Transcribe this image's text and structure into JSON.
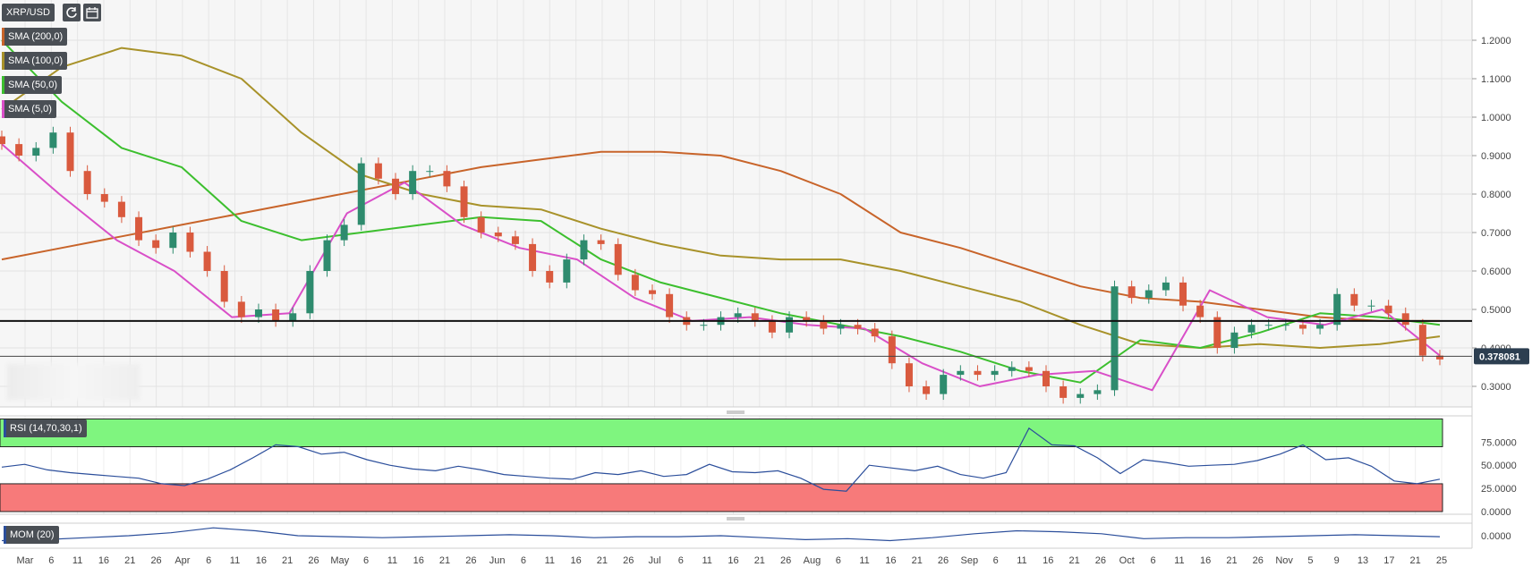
{
  "symbol": "XRP/USD",
  "toolbar": {
    "refresh_icon": "refresh-icon",
    "calendar_icon": "calendar-icon"
  },
  "legend": {
    "sma200": {
      "label": "SMA (200,0)",
      "color": "#c8642a"
    },
    "sma100": {
      "label": "SMA (100,0)",
      "color": "#a8922a"
    },
    "sma50": {
      "label": "SMA (50,0)",
      "color": "#3cbf2e"
    },
    "sma5": {
      "label": "SMA (5,0)",
      "color": "#d94fc8"
    },
    "rsi": {
      "label": "RSI (14,70,30,1)"
    },
    "mom": {
      "label": "MOM (20)"
    }
  },
  "price_badge": "0.378081",
  "colors": {
    "up": "#2e8b6e",
    "down": "#d95a3e",
    "rsi_line": "#2b4e9b",
    "rsi_high": "#7ff57f",
    "rsi_low": "#f77a7a"
  },
  "chart_data": [
    {
      "type": "candlestick",
      "title": "XRP/USD",
      "y_ticks": [
        "1.2000",
        "1.1000",
        "1.0000",
        "0.9000",
        "0.8000",
        "0.7000",
        "0.6000",
        "0.5000",
        "0.4000",
        "0.3000"
      ],
      "ylim": [
        0.25,
        1.3
      ],
      "x_ticks": [
        "Mar",
        "6",
        "11",
        "16",
        "21",
        "26",
        "Apr",
        "6",
        "11",
        "16",
        "21",
        "26",
        "May",
        "6",
        "11",
        "16",
        "21",
        "26",
        "Jun",
        "6",
        "11",
        "16",
        "21",
        "26",
        "Jul",
        "6",
        "11",
        "16",
        "21",
        "26",
        "Aug",
        "6",
        "11",
        "16",
        "21",
        "26",
        "Sep",
        "6",
        "11",
        "16",
        "21",
        "26",
        "Oct",
        "6",
        "11",
        "16",
        "21",
        "26",
        "Nov",
        "5",
        "9",
        "13",
        "17",
        "21",
        "25"
      ],
      "horizontal_line": 0.47,
      "last_price": 0.378081,
      "close_series": [
        0.93,
        0.9,
        0.92,
        0.96,
        0.86,
        0.8,
        0.78,
        0.74,
        0.68,
        0.66,
        0.7,
        0.65,
        0.6,
        0.52,
        0.48,
        0.5,
        0.47,
        0.49,
        0.6,
        0.68,
        0.72,
        0.88,
        0.84,
        0.8,
        0.86,
        0.86,
        0.82,
        0.74,
        0.7,
        0.69,
        0.67,
        0.6,
        0.57,
        0.63,
        0.68,
        0.67,
        0.59,
        0.55,
        0.54,
        0.48,
        0.46,
        0.46,
        0.48,
        0.49,
        0.47,
        0.44,
        0.48,
        0.47,
        0.45,
        0.46,
        0.45,
        0.43,
        0.36,
        0.3,
        0.28,
        0.33,
        0.34,
        0.33,
        0.34,
        0.35,
        0.34,
        0.3,
        0.27,
        0.28,
        0.29,
        0.56,
        0.53,
        0.55,
        0.57,
        0.51,
        0.48,
        0.4,
        0.44,
        0.46,
        0.46,
        0.46,
        0.45,
        0.46,
        0.54,
        0.51,
        0.51,
        0.49,
        0.46,
        0.38,
        0.37
      ],
      "series": [
        {
          "name": "SMA (200,0)",
          "values": [
            0.63,
            0.66,
            0.69,
            0.72,
            0.75,
            0.78,
            0.81,
            0.84,
            0.87,
            0.89,
            0.91,
            0.91,
            0.9,
            0.86,
            0.8,
            0.7,
            0.66,
            0.61,
            0.56,
            0.53,
            0.52,
            0.5,
            0.48,
            0.47,
            0.47
          ]
        },
        {
          "name": "SMA (100,0)",
          "values": [
            1.02,
            1.13,
            1.18,
            1.16,
            1.1,
            0.96,
            0.85,
            0.8,
            0.77,
            0.76,
            0.71,
            0.67,
            0.64,
            0.63,
            0.63,
            0.6,
            0.56,
            0.52,
            0.46,
            0.41,
            0.4,
            0.41,
            0.4,
            0.41,
            0.43
          ]
        },
        {
          "name": "SMA (50,0)",
          "values": [
            1.2,
            1.04,
            0.92,
            0.87,
            0.73,
            0.68,
            0.7,
            0.72,
            0.74,
            0.73,
            0.63,
            0.57,
            0.53,
            0.49,
            0.46,
            0.43,
            0.39,
            0.34,
            0.31,
            0.42,
            0.4,
            0.44,
            0.49,
            0.48,
            0.46
          ]
        },
        {
          "name": "SMA (5,0)",
          "values": [
            0.93,
            0.8,
            0.68,
            0.6,
            0.48,
            0.49,
            0.75,
            0.83,
            0.72,
            0.66,
            0.63,
            0.53,
            0.47,
            0.48,
            0.46,
            0.45,
            0.36,
            0.3,
            0.33,
            0.34,
            0.29,
            0.55,
            0.48,
            0.46,
            0.5,
            0.38
          ]
        }
      ]
    },
    {
      "type": "line",
      "title": "RSI (14,70,30,1)",
      "y_ticks": [
        "75.0000",
        "50.0000",
        "25.0000",
        "0.0000"
      ],
      "ylim": [
        0,
        100
      ],
      "bands": {
        "overbought": 70,
        "oversold": 30
      },
      "values": [
        48,
        51,
        45,
        42,
        40,
        38,
        36,
        30,
        28,
        35,
        45,
        58,
        72,
        70,
        62,
        64,
        56,
        50,
        46,
        44,
        49,
        45,
        40,
        38,
        36,
        35,
        42,
        40,
        44,
        38,
        40,
        51,
        43,
        42,
        44,
        36,
        24,
        22,
        50,
        47,
        44,
        49,
        40,
        36,
        42,
        90,
        72,
        71,
        58,
        41,
        56,
        53,
        49,
        50,
        51,
        55,
        62,
        72,
        56,
        58,
        49,
        33,
        30,
        35
      ]
    },
    {
      "type": "line",
      "title": "MOM (20)",
      "y_ticks": [
        "0.0000"
      ],
      "values": [
        -0.05,
        -0.04,
        -0.02,
        0.0,
        0.03,
        0.08,
        0.05,
        0.0,
        -0.01,
        -0.02,
        -0.01,
        0.0,
        0.01,
        0.0,
        -0.02,
        -0.01,
        -0.01,
        0.0,
        -0.02,
        -0.04,
        -0.03,
        -0.05,
        -0.02,
        0.02,
        0.05,
        0.04,
        0.02,
        -0.03,
        -0.02,
        -0.02,
        -0.01,
        0.0,
        0.01,
        0.0,
        -0.01
      ]
    }
  ]
}
